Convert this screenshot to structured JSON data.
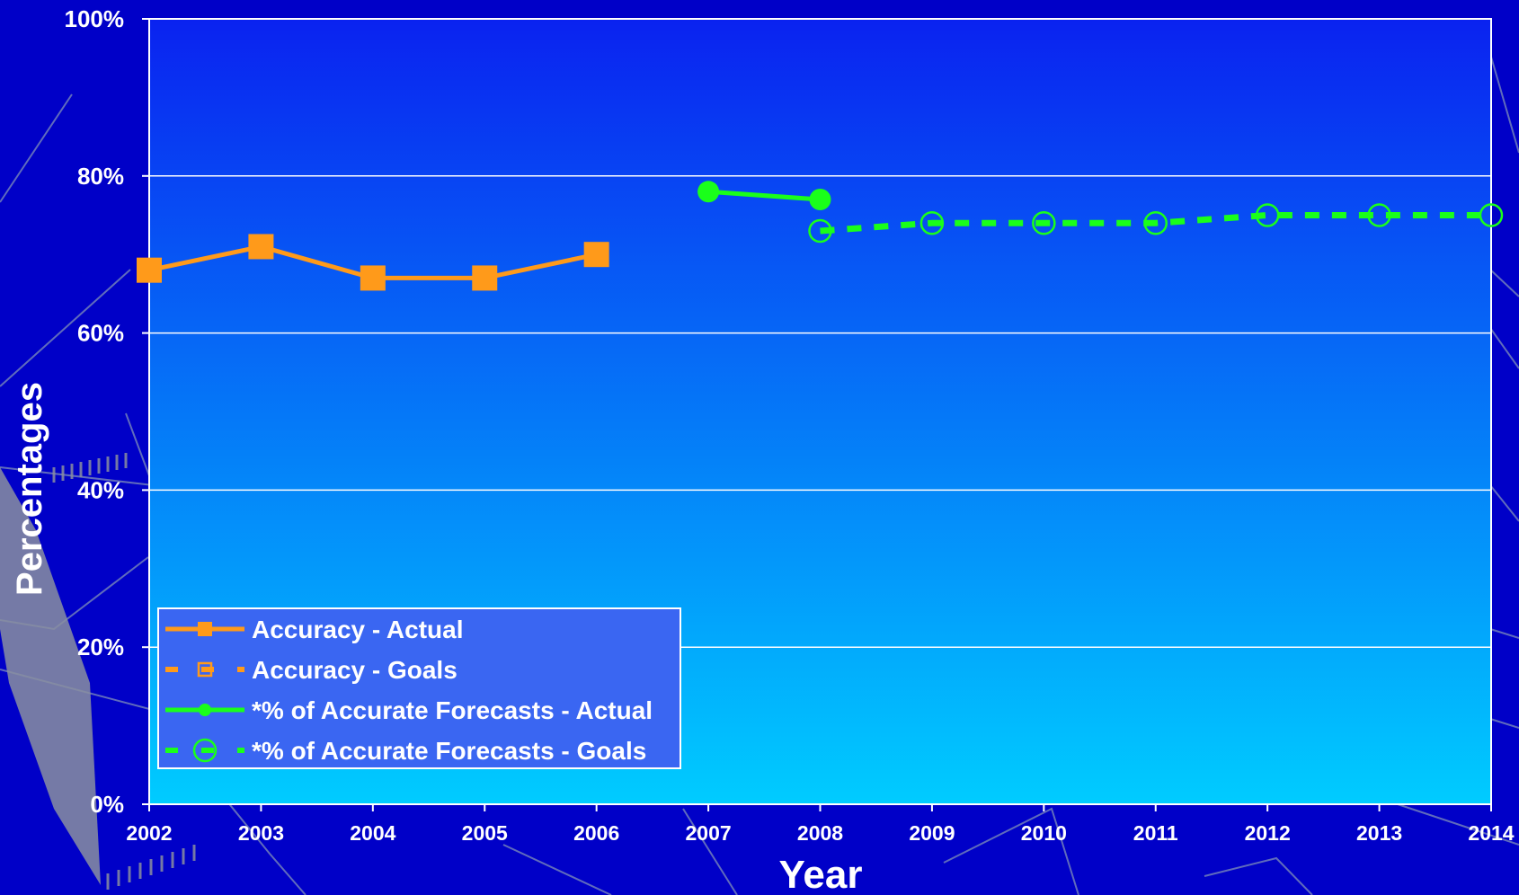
{
  "chart_data": {
    "type": "line",
    "title": "",
    "xlabel": "Year",
    "ylabel": "Percentages",
    "x": [
      2002,
      2003,
      2004,
      2005,
      2006,
      2007,
      2008,
      2009,
      2010,
      2011,
      2012,
      2013,
      2014
    ],
    "x_tick_labels": [
      "2002",
      "2003",
      "2004",
      "2005",
      "2006",
      "2007",
      "2008",
      "2009",
      "2010",
      "2011",
      "2012",
      "2013",
      "2014"
    ],
    "y_tick_labels": [
      "0%",
      "20%",
      "40%",
      "60%",
      "80%",
      "100%"
    ],
    "y_ticks": [
      0,
      20,
      40,
      60,
      80,
      100
    ],
    "ylim": [
      0,
      100
    ],
    "grid": true,
    "legend_position": "bottom-left",
    "series": [
      {
        "name": "Accuracy - Actual",
        "color": "#ff9a1a",
        "style": "solid",
        "marker": "square",
        "points": [
          [
            2002,
            68
          ],
          [
            2003,
            71
          ],
          [
            2004,
            67
          ],
          [
            2005,
            67
          ],
          [
            2006,
            70
          ]
        ]
      },
      {
        "name": "Accuracy - Goals",
        "color": "#ff9a1a",
        "style": "dashed",
        "marker": "square-open",
        "points": []
      },
      {
        "name": "*% of Accurate Forecasts - Actual",
        "color": "#1aff1a",
        "style": "solid",
        "marker": "circle",
        "points": [
          [
            2007,
            78
          ],
          [
            2008,
            77
          ]
        ]
      },
      {
        "name": "*% of Accurate Forecasts - Goals",
        "color": "#1aff1a",
        "style": "dashed",
        "marker": "circle-open",
        "points": [
          [
            2008,
            73
          ],
          [
            2009,
            74
          ],
          [
            2010,
            74
          ],
          [
            2011,
            74
          ],
          [
            2012,
            75
          ],
          [
            2013,
            75
          ],
          [
            2014,
            75
          ]
        ]
      }
    ]
  }
}
